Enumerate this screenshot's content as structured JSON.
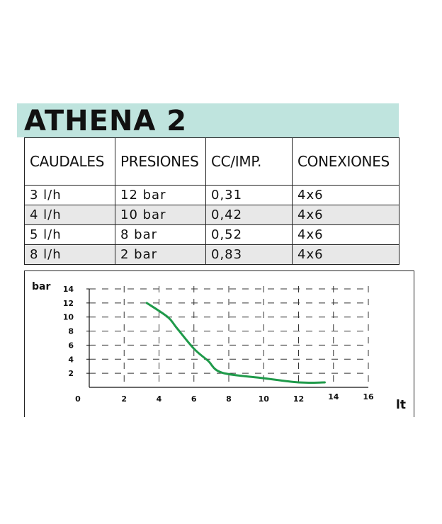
{
  "header": {
    "title": "ATHENA 2",
    "band_color": "#bfe4de"
  },
  "table": {
    "columns": [
      "CAUDALES",
      "PRESIONES",
      "CC/IMP.",
      "CONEXIONES"
    ],
    "rows": [
      [
        "3 l/h",
        "12 bar",
        "0,31",
        "4x6"
      ],
      [
        "4 l/h",
        "10 bar",
        "0,42",
        "4x6"
      ],
      [
        "5 l/h",
        "8 bar",
        "0,52",
        "4x6"
      ],
      [
        "8 l/h",
        "2 bar",
        "0,83",
        "4x6"
      ]
    ]
  },
  "chart_data": {
    "type": "line",
    "ylabel": "bar",
    "xlabel": "lt",
    "xlim": [
      0,
      16
    ],
    "ylim": [
      0,
      14
    ],
    "x_ticks": [
      0,
      2,
      4,
      6,
      8,
      10,
      12,
      14,
      16
    ],
    "y_ticks": [
      2,
      4,
      6,
      8,
      10,
      12,
      14
    ],
    "grid": true,
    "line_color": "#1f9a4a",
    "series": [
      {
        "x": [
          3.3,
          4.5,
          5.0,
          6.0,
          6.8,
          7.6,
          10.0,
          12.0,
          13.5
        ],
        "y": [
          12,
          10,
          8.5,
          5.5,
          3.8,
          2.1,
          1.3,
          0.7,
          0.7
        ]
      }
    ]
  }
}
